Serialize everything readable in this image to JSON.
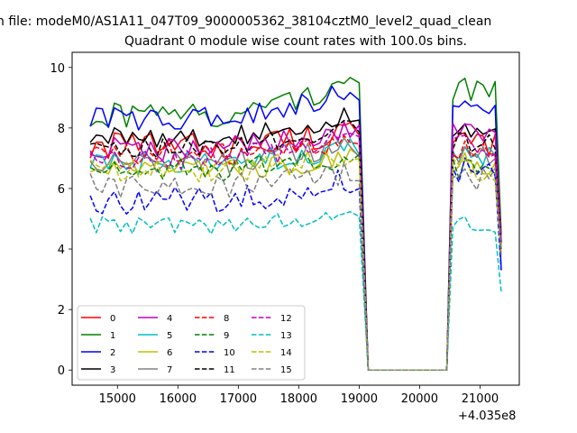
{
  "figure": {
    "suptitle": "n file: modeM0/AS1A11_047T09_9000005362_38104cztM0_level2_quad_clean",
    "title": "Quadrant 0 module wise count rates with 100.0s bins."
  },
  "chart_data": {
    "type": "line",
    "title": "Quadrant 0 module wise count rates with 100.0s bins.",
    "xlabel": "",
    "ylabel": "",
    "x_offset_label": "+4.035e8",
    "xlim": [
      14250,
      21650
    ],
    "ylim": [
      -0.5,
      10.5
    ],
    "xticks": [
      15000,
      16000,
      17000,
      18000,
      19000,
      20000,
      21000
    ],
    "xtick_labels": [
      "15000",
      "16000",
      "17000",
      "18000",
      "19000",
      "20000",
      "21000"
    ],
    "yticks": [
      0,
      2,
      4,
      6,
      8,
      10
    ],
    "ytick_labels": [
      "0",
      "2",
      "4",
      "6",
      "8",
      "10"
    ],
    "grid": false,
    "legend_position": "lower-left",
    "legend_columns": 4,
    "segments": {
      "first": {
        "x_start": 14550,
        "x_end": 18850,
        "step": 100
      },
      "gap_drop_x": 19000,
      "gap": {
        "x_start": 19150,
        "x_end": 20450,
        "value": 0
      },
      "second": {
        "x_start": 20550,
        "x_end": 21250
      },
      "final_x": 21350
    },
    "series": [
      {
        "name": "0",
        "color": "#ff0000",
        "style": "solid",
        "first_level": 7.4,
        "second_level": 7.4,
        "amplitude": 0.45,
        "trend": 0.6,
        "final_value": 4.5
      },
      {
        "name": "1",
        "color": "#008000",
        "style": "solid",
        "first_level": 8.4,
        "second_level": 9.2,
        "amplitude": 0.45,
        "trend": 1.4,
        "final_value": 4.5
      },
      {
        "name": "2",
        "color": "#0000ff",
        "style": "solid",
        "first_level": 8.3,
        "second_level": 8.5,
        "amplitude": 0.4,
        "trend": 1.1,
        "final_value": 3.3
      },
      {
        "name": "3",
        "color": "#000000",
        "style": "solid",
        "first_level": 7.7,
        "second_level": 7.8,
        "amplitude": 0.35,
        "trend": 0.8,
        "final_value": 4.2
      },
      {
        "name": "4",
        "color": "#bf00bf",
        "style": "solid",
        "first_level": 7.3,
        "second_level": 7.7,
        "amplitude": 0.45,
        "trend": 0.9,
        "final_value": 4.3
      },
      {
        "name": "5",
        "color": "#00bfbf",
        "style": "solid",
        "first_level": 6.8,
        "second_level": 7.0,
        "amplitude": 0.4,
        "trend": 0.6,
        "final_value": 4.0
      },
      {
        "name": "6",
        "color": "#bfbf00",
        "style": "solid",
        "first_level": 6.6,
        "second_level": 6.8,
        "amplitude": 0.4,
        "trend": 0.6,
        "final_value": 4.0
      },
      {
        "name": "7",
        "color": "#808080",
        "style": "solid",
        "first_level": 6.9,
        "second_level": 7.0,
        "amplitude": 0.4,
        "trend": 0.5,
        "final_value": 4.0
      },
      {
        "name": "8",
        "color": "#ff0000",
        "style": "dashed",
        "first_level": 7.1,
        "second_level": 7.2,
        "amplitude": 0.4,
        "trend": 0.6,
        "final_value": 4.0
      },
      {
        "name": "9",
        "color": "#008000",
        "style": "dashed",
        "first_level": 6.6,
        "second_level": 6.6,
        "amplitude": 0.4,
        "trend": 0.6,
        "final_value": 4.0
      },
      {
        "name": "10",
        "color": "#0000ff",
        "style": "dashed",
        "first_level": 5.6,
        "second_level": 6.6,
        "amplitude": 0.45,
        "trend": 0.8,
        "final_value": 3.3
      },
      {
        "name": "11",
        "color": "#000000",
        "style": "dashed",
        "first_level": 7.3,
        "second_level": 7.5,
        "amplitude": 0.35,
        "trend": 0.8,
        "final_value": 4.2
      },
      {
        "name": "12",
        "color": "#bf00bf",
        "style": "dashed",
        "first_level": 7.0,
        "second_level": 7.4,
        "amplitude": 0.4,
        "trend": 0.8,
        "final_value": 4.2
      },
      {
        "name": "13",
        "color": "#00bfbf",
        "style": "dashed",
        "first_level": 4.8,
        "second_level": 4.8,
        "amplitude": 0.3,
        "trend": 0.5,
        "final_value": 2.6
      },
      {
        "name": "14",
        "color": "#bfbf00",
        "style": "dashed",
        "first_level": 6.6,
        "second_level": 6.6,
        "amplitude": 0.4,
        "trend": 0.5,
        "final_value": 3.9
      },
      {
        "name": "15",
        "color": "#808080",
        "style": "dashed",
        "first_level": 6.1,
        "second_level": 6.3,
        "amplitude": 0.4,
        "trend": 0.5,
        "final_value": 3.8
      }
    ]
  }
}
